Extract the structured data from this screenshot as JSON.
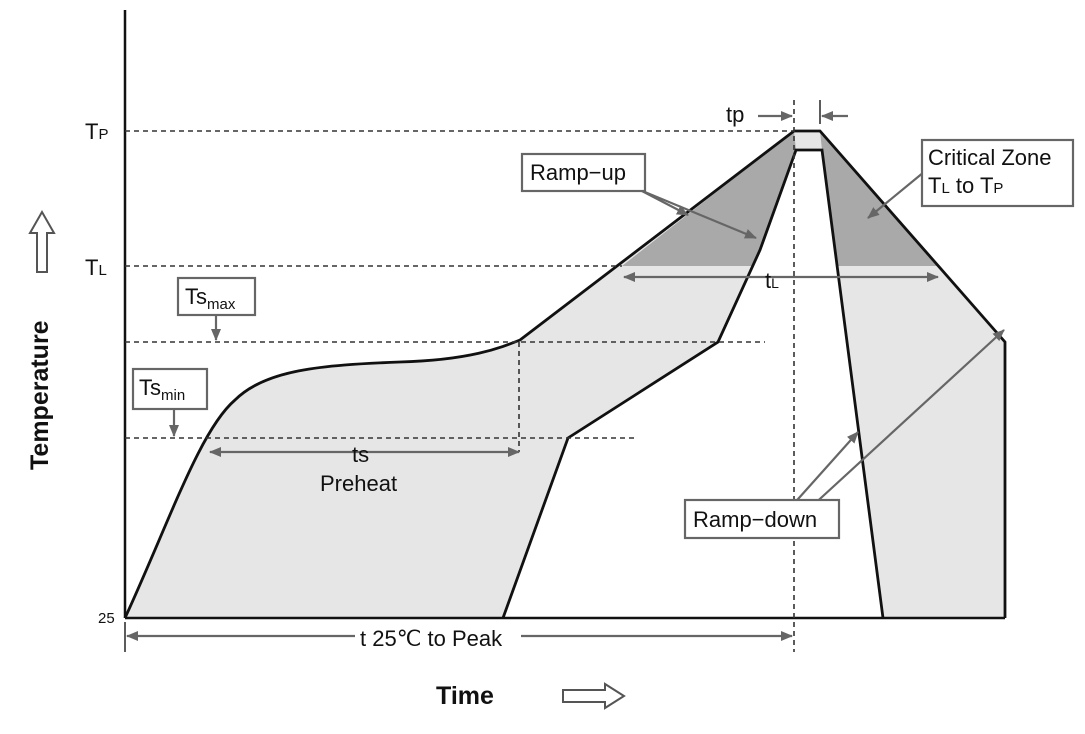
{
  "y_axis": {
    "label": "Temperature",
    "ticks": {
      "tp": "T",
      "tp_sub": "P",
      "tl": "T",
      "tl_sub": "L",
      "base": "25"
    }
  },
  "x_axis": {
    "label": "Time"
  },
  "labels": {
    "tp": "tp",
    "ramp_up": "Ramp−up",
    "critical_zone_line1": "Critical Zone",
    "critical_zone_line2_t1": "T",
    "critical_zone_line2_s1": "L",
    "critical_zone_line2_mid": " to T",
    "critical_zone_line2_s2": "P",
    "tl": "t",
    "tl_sub": "L",
    "ts_max": "Ts",
    "ts_max_sub": "max",
    "ts_min": "Ts",
    "ts_min_sub": "min",
    "ts": "ts",
    "preheat": "Preheat",
    "ramp_down": "Ramp−down",
    "t25_to_peak": "t 25℃ to Peak"
  },
  "colors": {
    "band_fill": "#e6e6e6",
    "critical_fill": "#a9a9a9",
    "outline": "#111111",
    "annotation": "#666666"
  }
}
